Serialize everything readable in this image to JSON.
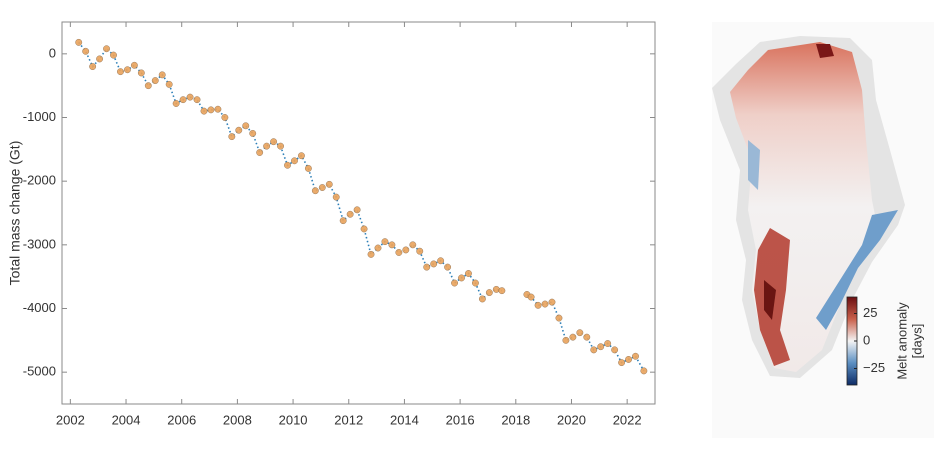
{
  "chart_data": [
    {
      "type": "line",
      "y_label": "Total mass change (Gt)",
      "x": [
        2002.3,
        2002.55,
        2002.8,
        2003.05,
        2003.3,
        2003.55,
        2003.8,
        2004.05,
        2004.3,
        2004.55,
        2004.8,
        2005.05,
        2005.3,
        2005.55,
        2005.8,
        2006.05,
        2006.3,
        2006.55,
        2006.8,
        2007.05,
        2007.3,
        2007.55,
        2007.8,
        2008.05,
        2008.3,
        2008.55,
        2008.8,
        2009.05,
        2009.3,
        2009.55,
        2009.8,
        2010.05,
        2010.3,
        2010.55,
        2010.8,
        2011.05,
        2011.3,
        2011.55,
        2011.8,
        2012.05,
        2012.3,
        2012.55,
        2012.8,
        2013.05,
        2013.3,
        2013.55,
        2013.8,
        2014.05,
        2014.3,
        2014.55,
        2014.8,
        2015.05,
        2015.3,
        2015.55,
        2015.8,
        2016.05,
        2016.3,
        2016.55,
        2016.8,
        2017.05,
        2017.3,
        2017.5,
        2018,
        2018.4,
        2018.55,
        2018.8,
        2019.05,
        2019.3,
        2019.55,
        2019.8,
        2020.05,
        2020.3,
        2020.55,
        2020.8,
        2021.05,
        2021.3,
        2021.55,
        2021.8,
        2022.05,
        2022.3,
        2022.6
      ],
      "series": [
        {
          "color": "#2c7fb8",
          "marker_color": "#e9a35c",
          "values": [
            180,
            40,
            -200,
            -80,
            80,
            -20,
            -280,
            -250,
            -180,
            -300,
            -500,
            -420,
            -330,
            -480,
            -780,
            -720,
            -680,
            -720,
            -900,
            -880,
            -870,
            -1000,
            -1300,
            -1200,
            -1130,
            -1250,
            -1550,
            -1450,
            -1380,
            -1450,
            -1750,
            -1680,
            -1600,
            -1800,
            -2150,
            -2100,
            -2050,
            -2250,
            -2620,
            -2520,
            -2450,
            -2750,
            -3150,
            -3050,
            -2950,
            -3000,
            -3120,
            -3080,
            -3000,
            -3100,
            -3350,
            -3300,
            -3250,
            -3350,
            -3600,
            -3520,
            -3450,
            -3600,
            -3850,
            -3750,
            -3700,
            -3720,
            null,
            -3780,
            -3820,
            -3950,
            -3930,
            -3900,
            -4150,
            -4500,
            -4450,
            -4380,
            -4450,
            -4650,
            -4600,
            -4550,
            -4650,
            -4850,
            -4800,
            -4750,
            -4980
          ]
        }
      ],
      "xlim": [
        2001.7,
        2023
      ],
      "xticks": [
        2002,
        2004,
        2006,
        2008,
        2010,
        2012,
        2014,
        2016,
        2018,
        2020,
        2022
      ],
      "ylim": [
        -5500,
        500
      ],
      "yticks": [
        0,
        -1000,
        -2000,
        -3000,
        -4000,
        -5000
      ],
      "grid": false
    },
    {
      "type": "map",
      "colorbar_label": [
        "Melt anomaly",
        "[days]"
      ],
      "colorbar_lim": [
        -40,
        40
      ],
      "colorbar_ticks": [
        25,
        0,
        {
          "value": -25,
          "label": "−25"
        }
      ],
      "colormap": [
        "#0d2b66",
        "#5b8fc2",
        "#f4f4f4",
        "#c9604b",
        "#6a0f12"
      ]
    }
  ]
}
